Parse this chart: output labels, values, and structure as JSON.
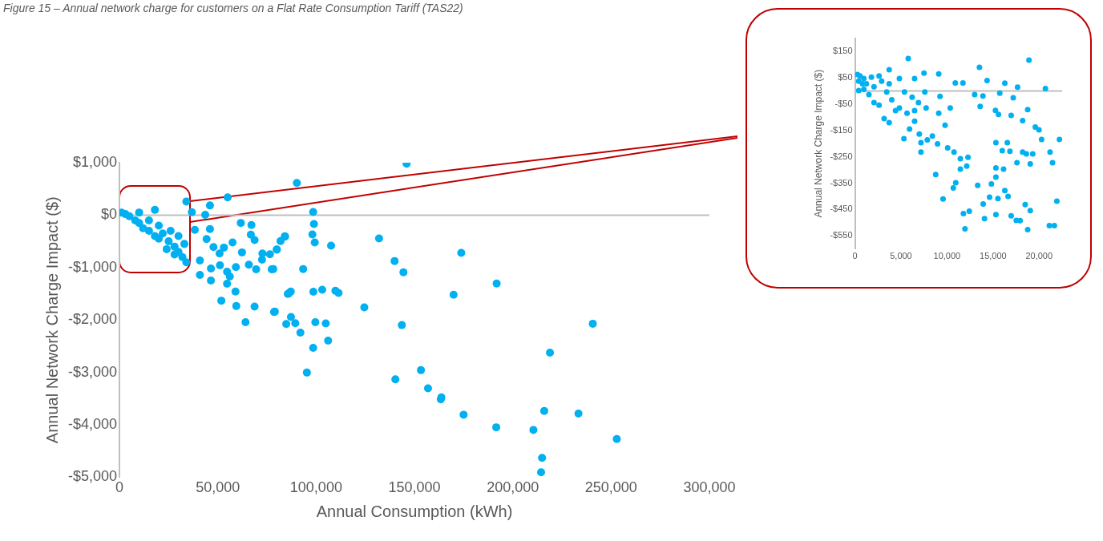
{
  "chart_data": [
    {
      "type": "scatter",
      "title": "Figure 15 – Annual network charge for customers on a Flat Rate Consumption Tariff (TAS22)",
      "xlabel": "Annual Consumption (kWh)",
      "ylabel": "Annual Network Charge Impact ($)",
      "marker": "circle",
      "grid": false,
      "xlim": [
        0,
        300000
      ],
      "ylim": [
        -5000,
        1000
      ],
      "xticks": [
        0,
        {
          "value": 50000,
          "label": "50,000"
        },
        {
          "value": 100000,
          "label": "100,000"
        },
        {
          "value": 150000,
          "label": "150,000"
        },
        {
          "value": 200000,
          "label": "200,000"
        },
        {
          "value": 250000,
          "label": "250,000"
        },
        {
          "value": 300000,
          "label": "300,000"
        }
      ],
      "yticks": [
        {
          "value": -5000,
          "label": "-$5,000"
        },
        {
          "value": -4000,
          "label": "-$4,000"
        },
        {
          "value": -3000,
          "label": "-$3,000"
        },
        {
          "value": -2000,
          "label": "-$2,000"
        },
        {
          "value": -1000,
          "label": "-$1,000"
        },
        {
          "value": 0,
          "label": "$0"
        },
        {
          "value": 1000,
          "label": "$1,000"
        }
      ],
      "ref_lines": [
        {
          "axis": "y",
          "value": 0,
          "color": "#bfbfbf"
        }
      ],
      "series": [
        {
          "color": "#00b0f0",
          "x": [
            1000,
            3000,
            5000,
            8000,
            10000,
            12000,
            15000,
            18000,
            20000,
            22000,
            25000,
            28000,
            30000,
            32000,
            34000,
            26000,
            30000,
            33000,
            20000,
            15000,
            10000,
            18000,
            24000,
            28000,
            34000,
            36800,
            43600,
            61700,
            67100,
            66800,
            68700,
            46000,
            38300,
            57500,
            53100,
            62300,
            50900,
            72700,
            76500,
            80000,
            84200,
            72500,
            65800,
            69500,
            77400,
            93400,
            51100,
            59200,
            54700,
            56100,
            46500,
            40900,
            54700,
            59000,
            51800,
            59400,
            68700,
            78600,
            64100,
            85600,
            44300,
            47800,
            40900,
            46500,
            146000,
            90200,
            55000,
            46000,
            98500,
            98900,
            98100,
            99300,
            107600,
            132000,
            173800,
            139900,
            144400,
            191800,
            169900,
            240700,
            218900,
            124500,
            143600,
            153300,
            140300,
            156900,
            163700,
            163400,
            175000,
            216000,
            233400,
            191600,
            210500,
            252900,
            214900,
            214400,
            98600,
            103100,
            109800,
            111400,
            86100,
            87100,
            79000,
            87200,
            84800,
            89400,
            99600,
            104900,
            92000,
            98500,
            106100,
            95300,
            84100,
            81900,
            80000,
            78200
          ],
          "values": [
            50,
            20,
            -20,
            -100,
            -150,
            -250,
            -300,
            -400,
            -450,
            -350,
            -500,
            -600,
            -700,
            -800,
            -900,
            -300,
            -400,
            -550,
            -200,
            -100,
            50,
            100,
            -650,
            -750,
            260,
            57,
            5,
            -149,
            -189,
            -373,
            -476,
            -266,
            -281,
            -522,
            -619,
            -711,
            -732,
            -732,
            -748,
            -660,
            -409,
            -849,
            -946,
            -1033,
            -1033,
            -1028,
            -956,
            -991,
            -1079,
            -1171,
            -1248,
            -1141,
            -1310,
            -1458,
            -1632,
            -1735,
            -1745,
            -1847,
            -2042,
            -1504,
            -456,
            -610,
            -865,
            -1018,
            982,
            614,
            340,
            184,
            61,
            -169,
            -368,
            -522,
            -583,
            -445,
            -721,
            -875,
            -1090,
            -1305,
            -1520,
            -2072,
            -2625,
            -1760,
            -2098,
            -2958,
            -3131,
            -3305,
            -3475,
            -3515,
            -3807,
            -3735,
            -3787,
            -4048,
            -4098,
            -4272,
            -4631,
            -4907,
            -1463,
            -1423,
            -1443,
            -1484,
            -1494,
            -1458,
            -1842,
            -1944,
            -2077,
            -2062,
            -2042,
            -2067,
            -2241,
            -2533,
            -2395,
            -3004,
            -404,
            -496,
            -655,
            -1028
          ]
        }
      ]
    },
    {
      "type": "scatter",
      "ylabel": "Annual Network Charge Impact ($)",
      "marker": "circle",
      "grid": false,
      "xlim": [
        0,
        22500
      ],
      "ylim": [
        -600,
        200
      ],
      "xticks": [
        0,
        {
          "value": 5000,
          "label": "5,000"
        },
        {
          "value": 10000,
          "label": "10,000"
        },
        {
          "value": 15000,
          "label": "15,000"
        },
        {
          "value": 20000,
          "label": "20,000"
        }
      ],
      "yticks": [
        {
          "value": -550,
          "label": "-$550"
        },
        {
          "value": -450,
          "label": "-$450"
        },
        {
          "value": -350,
          "label": "-$350"
        },
        {
          "value": -250,
          "label": "-$250"
        },
        {
          "value": -150,
          "label": "-$150"
        },
        {
          "value": -50,
          "label": "-$50"
        },
        {
          "value": 50,
          "label": "$50"
        },
        {
          "value": 150,
          "label": "$150"
        }
      ],
      "ref_lines": [
        {
          "axis": "y",
          "value": 0,
          "color": "#bfbfbf"
        }
      ],
      "series": [
        {
          "color": "#00b0f0",
          "x": [
            5790,
            18900,
            13520,
            3720,
            9100,
            7500,
            14350,
            16280,
            17660,
            20690,
            17190,
            15730,
            10900,
            11730,
            13000,
            13900,
            9240,
            18760,
            18210,
            16970,
            15260,
            13600,
            19590,
            19990,
            20270,
            22210,
            15590,
            15310,
            16550,
            16000,
            16830,
            18210,
            18620,
            19310,
            17600,
            19040,
            21460,
            21190,
            16140,
            15310,
            15310,
            13330,
            14820,
            16280,
            16630,
            15530,
            14620,
            13930,
            16970,
            18490,
            19040,
            21930,
            17520,
            17940,
            18760,
            21110,
            21660,
            15310,
            14070,
            11950,
            11780,
            12420,
            9570,
            8770,
            10680,
            10950,
            11450,
            12140,
            12280,
            11450,
            10760,
            10070,
            8970,
            7860,
            7170,
            7170,
            5320,
            5930,
            6990,
            8410,
            9790,
            9100,
            10350,
            7730,
            6480,
            4830,
            4000,
            3170,
            3720,
            4410,
            2620,
            2070,
            1520,
            970,
            410,
            280,
            550,
            830,
            1240,
            2070,
            2900,
            3720,
            4830,
            6480,
            5380,
            6210,
            6900,
            7590,
            410,
            970,
            1790,
            2620,
            3450,
            5660,
            6480
          ],
          "values": [
            123,
            117,
            89,
            80,
            64,
            67,
            39,
            29,
            14,
            9,
            -26,
            -9,
            30,
            30,
            -14,
            -19,
            -21,
            -71,
            -113,
            -93,
            -74,
            -59,
            -137,
            -148,
            -184,
            -184,
            -89,
            -196,
            -196,
            -227,
            -229,
            -232,
            -239,
            -239,
            -272,
            -277,
            -272,
            -232,
            -297,
            -327,
            -292,
            -358,
            -353,
            -378,
            -400,
            -408,
            -403,
            -429,
            -474,
            -431,
            -454,
            -418,
            -491,
            -492,
            -526,
            -511,
            -511,
            -469,
            -484,
            -523,
            -465,
            -456,
            -410,
            -317,
            -368,
            -348,
            -297,
            -285,
            -252,
            -257,
            -232,
            -216,
            -201,
            -186,
            -196,
            -232,
            -181,
            -145,
            -164,
            -171,
            -130,
            -85,
            -65,
            -65,
            -75,
            -65,
            -34,
            -105,
            -120,
            -75,
            -54,
            -44,
            -14,
            6,
            37,
            62,
            57,
            27,
            27,
            16,
            37,
            27,
            47,
            47,
            -4,
            -24,
            -44,
            -4,
            1,
            47,
            52,
            57,
            -4,
            -85,
            -115
          ]
        }
      ]
    }
  ]
}
